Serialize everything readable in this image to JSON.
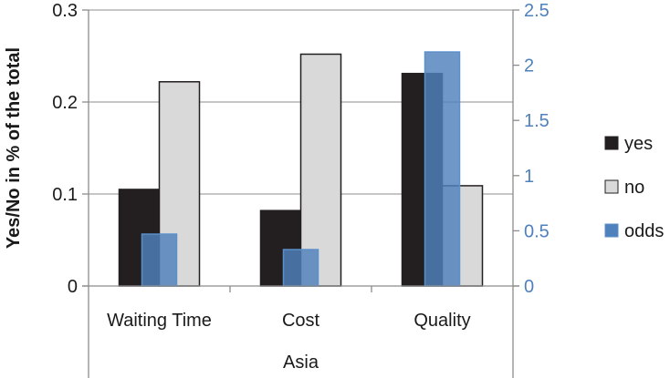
{
  "chart_data": {
    "type": "bar",
    "group_label": "Asia",
    "categories": [
      "Waiting Time",
      "Cost",
      "Quality"
    ],
    "ylabel": "Yes/No in % of the total",
    "ylim": [
      0,
      0.3
    ],
    "y2lim": [
      0,
      2.5
    ],
    "y_ticks": [
      "0",
      "0.1",
      "0.2",
      "0.3"
    ],
    "y2_ticks": [
      "0",
      "0.5",
      "1",
      "1.5",
      "2",
      "2.5"
    ],
    "grid": true,
    "legend_position": "right",
    "series": [
      {
        "name": "yes",
        "axis": "left",
        "color": "#231f20",
        "values": [
          0.105,
          0.082,
          0.231
        ]
      },
      {
        "name": "no",
        "axis": "left",
        "color": "#d9d9d9",
        "values": [
          0.222,
          0.252,
          0.109
        ]
      },
      {
        "name": "odds",
        "axis": "right",
        "color": "#4f81bd",
        "values": [
          0.47,
          0.33,
          2.12
        ]
      }
    ]
  }
}
